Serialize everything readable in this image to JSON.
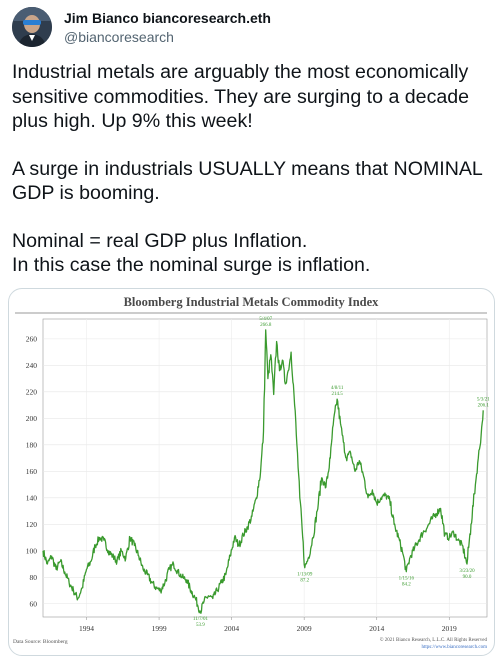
{
  "author": {
    "display_name": "Jim Bianco biancoresearch.eth",
    "handle": "@biancoresearch",
    "avatar_icon": "avatar-photo"
  },
  "tweet": {
    "paragraphs": [
      [
        "Industrial metals are arguably the most economically",
        "sensitive commodities. They are surging to a decade",
        "plus high. Up 9% this week!"
      ],
      [
        "A surge in industrials USUALLY means that NOMINAL",
        "GDP is booming."
      ],
      [
        "Nominal = real GDP plus Inflation.",
        "In this case the nominal surge is inflation."
      ]
    ]
  },
  "chart_data": {
    "type": "line",
    "title": "Bloomberg Industrial Metals Commodity Index",
    "source": "Data Source: Bloomberg",
    "copyright": "© 2021 Bianco Research, L.L.C. All Rights Reserved",
    "url": "https://www.biancoresearch.com",
    "ylim": [
      50,
      275
    ],
    "yticks": [
      60,
      80,
      100,
      120,
      140,
      160,
      180,
      200,
      220,
      240,
      260
    ],
    "xlim": [
      1991.0,
      2021.6
    ],
    "xticks": [
      {
        "x": 1994,
        "label": "1994"
      },
      {
        "x": 1999,
        "label": "1999"
      },
      {
        "x": 2004,
        "label": "2004"
      },
      {
        "x": 2009,
        "label": "2009"
      },
      {
        "x": 2014,
        "label": "2014"
      },
      {
        "x": 2019,
        "label": "2019"
      }
    ],
    "color": "#3a9a2e",
    "annotations": [
      {
        "date": "5/4/07",
        "value_label": "266.8",
        "x": 2006.35,
        "y": 266.8,
        "pos": "above"
      },
      {
        "date": "4/8/11",
        "value_label": "214.5",
        "x": 2011.27,
        "y": 214.5,
        "pos": "above"
      },
      {
        "date": "5/3/21",
        "value_label": "206.1",
        "x": 2021.34,
        "y": 206.1,
        "pos": "above"
      },
      {
        "date": "1/13/09",
        "value_label": "87.2",
        "x": 2009.04,
        "y": 87.2,
        "pos": "below"
      },
      {
        "date": "1/15/16",
        "value_label": "84.2",
        "x": 2016.04,
        "y": 84.2,
        "pos": "below"
      },
      {
        "date": "3/23/20",
        "value_label": "90.0",
        "x": 2020.22,
        "y": 90.0,
        "pos": "below"
      },
      {
        "date": "11/7/01",
        "value_label": "53.9",
        "x": 2001.85,
        "y": 53.9,
        "pos": "below"
      }
    ],
    "series": [
      {
        "x": [
          1991.0,
          1991.3,
          1991.6,
          1991.9,
          1992.2,
          1992.5,
          1992.8,
          1993.1,
          1993.4,
          1993.7,
          1994.0,
          1994.3,
          1994.6,
          1994.9,
          1995.2,
          1995.5,
          1995.8,
          1996.1,
          1996.4,
          1996.7,
          1997.0,
          1997.3,
          1997.6,
          1997.9,
          1998.2,
          1998.5,
          1998.8,
          1999.1,
          1999.4,
          1999.7,
          2000.0,
          2000.3,
          2000.6,
          2000.9,
          2001.2,
          2001.5,
          2001.85,
          2002.1,
          2002.4,
          2002.7,
          2003.0,
          2003.3,
          2003.6,
          2003.9,
          2004.2,
          2004.5,
          2004.8,
          2005.1,
          2005.4,
          2005.7,
          2006.0,
          2006.2,
          2006.35,
          2006.5,
          2006.7,
          2006.9,
          2007.1,
          2007.3,
          2007.5,
          2007.7,
          2007.9,
          2008.1,
          2008.3,
          2008.5,
          2008.7,
          2008.9,
          2009.04,
          2009.3,
          2009.6,
          2009.9,
          2010.2,
          2010.5,
          2010.8,
          2011.0,
          2011.27,
          2011.5,
          2011.7,
          2011.9,
          2012.2,
          2012.5,
          2012.8,
          2013.1,
          2013.4,
          2013.7,
          2014.0,
          2014.3,
          2014.6,
          2014.9,
          2015.2,
          2015.5,
          2015.8,
          2016.04,
          2016.3,
          2016.6,
          2016.9,
          2017.2,
          2017.5,
          2017.8,
          2018.1,
          2018.4,
          2018.7,
          2019.0,
          2019.3,
          2019.6,
          2019.9,
          2020.22,
          2020.5,
          2020.8,
          2021.0,
          2021.2,
          2021.34
        ],
        "y": [
          100,
          90,
          96,
          86,
          92,
          84,
          76,
          70,
          64,
          72,
          86,
          92,
          104,
          110,
          108,
          100,
          96,
          92,
          100,
          94,
          110,
          104,
          96,
          86,
          82,
          76,
          72,
          70,
          76,
          86,
          90,
          84,
          80,
          78,
          70,
          64,
          54,
          62,
          66,
          64,
          70,
          76,
          82,
          96,
          110,
          104,
          112,
          118,
          126,
          140,
          160,
          190,
          266.8,
          230,
          248,
          218,
          258,
          236,
          244,
          226,
          236,
          250,
          218,
          180,
          140,
          110,
          87.2,
          95,
          110,
          130,
          155,
          148,
          170,
          195,
          214.5,
          196,
          182,
          170,
          174,
          160,
          168,
          156,
          140,
          146,
          136,
          140,
          142,
          138,
          120,
          110,
          98,
          84.2,
          95,
          102,
          108,
          114,
          118,
          124,
          128,
          132,
          112,
          110,
          114,
          108,
          104,
          90.0,
          120,
          150,
          170,
          188,
          206.1
        ]
      }
    ]
  }
}
